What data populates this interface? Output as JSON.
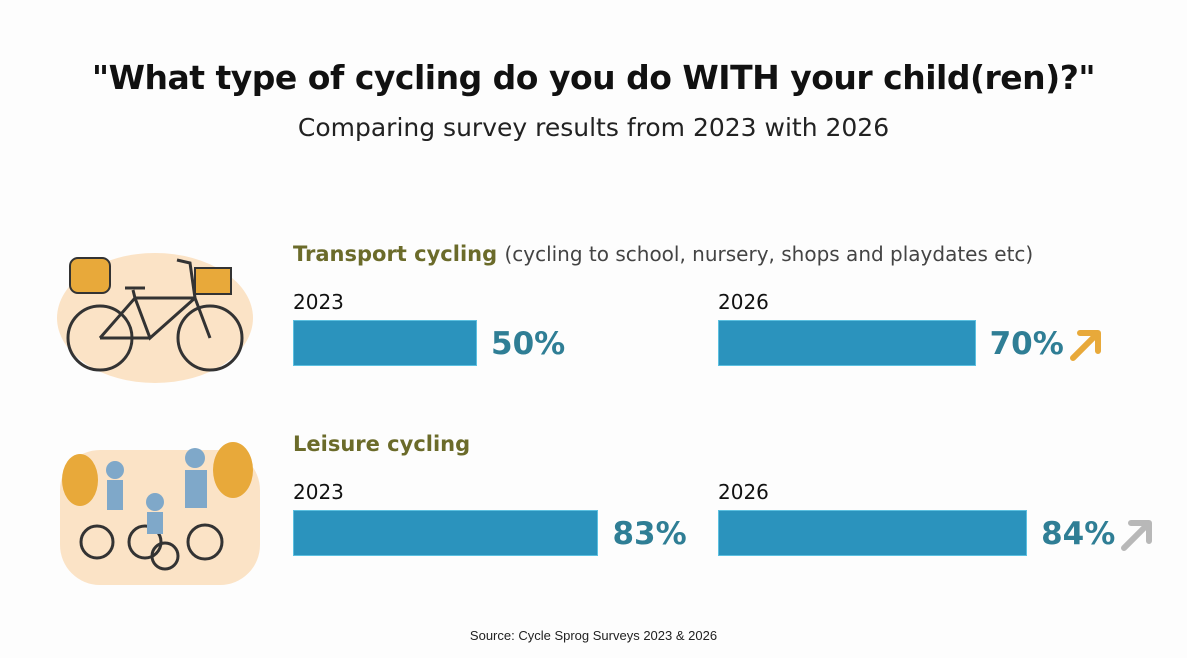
{
  "title": "\"What type of cycling do you do WITH your child(ren)?\"",
  "subtitle": "Comparing survey results from 2023 with 2026",
  "source": "Source: Cycle Sprog Surveys 2023 & 2026",
  "chart_data": {
    "type": "bar",
    "title": "\"What type of cycling do you do WITH your child(ren)?\"",
    "subtitle": "Comparing survey results from 2023 with 2026",
    "unit": "%",
    "groups": [
      {
        "name": "Transport cycling",
        "description": "(cycling to school, nursery, shops and playdates etc)",
        "values": [
          {
            "year": "2023",
            "value": 50,
            "label": "50%"
          },
          {
            "year": "2026",
            "value": 70,
            "label": "70%",
            "trend": "up",
            "trend_color": "#e8a93a"
          }
        ]
      },
      {
        "name": "Leisure cycling",
        "description": "",
        "values": [
          {
            "year": "2023",
            "value": 83,
            "label": "83%"
          },
          {
            "year": "2026",
            "value": 84,
            "label": "84%",
            "trend": "up",
            "trend_color": "#b8b8b8"
          }
        ]
      }
    ],
    "colors": {
      "bar": "#2b93bd",
      "value_label": "#2f7e95",
      "category": "#6b6b2a"
    }
  }
}
